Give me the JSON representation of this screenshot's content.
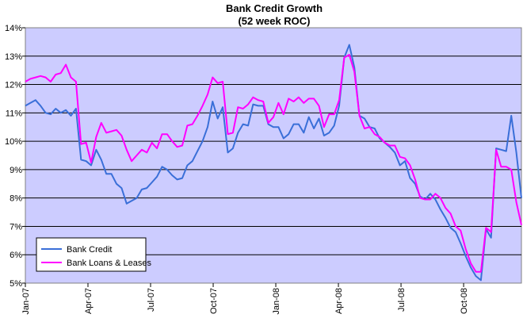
{
  "chart_data": {
    "type": "line",
    "title": "Bank Credit Growth",
    "subtitle": "(52 week ROC)",
    "xlabel": "",
    "ylabel": "",
    "ylim": [
      5,
      14
    ],
    "yticks": [
      "5%",
      "6%",
      "7%",
      "8%",
      "9%",
      "10%",
      "11%",
      "12%",
      "13%",
      "14%"
    ],
    "xlim": [
      0,
      103
    ],
    "xticks": [
      {
        "label": "Jan-07",
        "x": 0
      },
      {
        "label": "Apr-07",
        "x": 13
      },
      {
        "label": "Jul-07",
        "x": 26
      },
      {
        "label": "Oct-07",
        "x": 39
      },
      {
        "label": "Jan-08",
        "x": 52
      },
      {
        "label": "Apr-08",
        "x": 65
      },
      {
        "label": "Jul-08",
        "x": 78
      },
      {
        "label": "Oct-08",
        "x": 91
      }
    ],
    "grid": "horizontal",
    "legend_position": "bottom-left",
    "plot_background": "#ccccff",
    "series": [
      {
        "name": "Bank Credit",
        "color": "#3a6fd8",
        "values": [
          11.25,
          11.35,
          11.45,
          11.25,
          11.0,
          10.95,
          11.15,
          11.0,
          11.1,
          10.9,
          11.15,
          9.35,
          9.3,
          9.15,
          9.7,
          9.35,
          8.85,
          8.85,
          8.5,
          8.35,
          7.8,
          7.9,
          8.0,
          8.3,
          8.35,
          8.55,
          8.75,
          9.1,
          9.0,
          8.8,
          8.65,
          8.7,
          9.15,
          9.3,
          9.65,
          10.0,
          10.5,
          11.4,
          10.8,
          11.2,
          9.6,
          9.75,
          10.3,
          10.6,
          10.55,
          11.3,
          11.25,
          11.25,
          10.6,
          10.5,
          10.5,
          10.1,
          10.25,
          10.6,
          10.6,
          10.3,
          10.85,
          10.45,
          10.8,
          10.2,
          10.3,
          10.55,
          11.25,
          12.95,
          13.4,
          12.6,
          10.9,
          10.8,
          10.5,
          10.45,
          10.1,
          9.95,
          9.8,
          9.6,
          9.15,
          9.3,
          8.7,
          8.5,
          8.05,
          7.95,
          8.15,
          7.95,
          7.6,
          7.3,
          6.95,
          6.8,
          6.4,
          5.95,
          5.55,
          5.25,
          5.1,
          6.9,
          6.6,
          9.75,
          9.7,
          9.65,
          10.9,
          9.6,
          8.0
        ]
      },
      {
        "name": "Bank Loans & Leases",
        "color": "#ff00ff",
        "values": [
          12.1,
          12.2,
          12.25,
          12.3,
          12.25,
          12.1,
          12.35,
          12.4,
          12.7,
          12.25,
          12.1,
          9.9,
          9.95,
          9.25,
          10.15,
          10.65,
          10.3,
          10.35,
          10.4,
          10.2,
          9.7,
          9.3,
          9.5,
          9.7,
          9.6,
          9.95,
          9.75,
          10.25,
          10.25,
          10.0,
          9.8,
          9.85,
          10.55,
          10.6,
          10.9,
          11.25,
          11.65,
          12.25,
          12.05,
          12.1,
          10.25,
          10.3,
          11.2,
          11.15,
          11.3,
          11.55,
          11.45,
          11.4,
          10.65,
          10.85,
          11.35,
          10.95,
          11.5,
          11.4,
          11.55,
          11.35,
          11.5,
          11.5,
          11.25,
          10.5,
          10.95,
          10.95,
          11.45,
          12.95,
          13.05,
          12.45,
          10.9,
          10.45,
          10.5,
          10.25,
          10.15,
          9.95,
          9.85,
          9.85,
          9.45,
          9.4,
          9.15,
          8.65,
          8.0,
          7.95,
          7.95,
          8.15,
          8.0,
          7.65,
          7.45,
          7.0,
          6.85,
          6.2,
          5.7,
          5.4,
          5.4,
          6.95,
          6.8,
          9.7,
          9.1,
          9.1,
          9.0,
          7.85,
          7.05
        ]
      }
    ]
  }
}
